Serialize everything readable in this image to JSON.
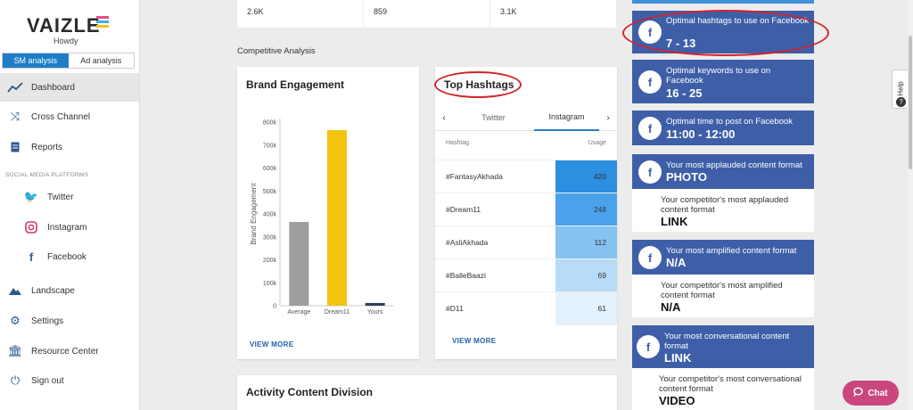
{
  "app": {
    "logo": "VAIZLE",
    "greeting": "Howdy"
  },
  "mode_toggle": {
    "sm": "SM analysis",
    "ad": "Ad analysis"
  },
  "nav": {
    "dashboard": "Dashboard",
    "cross_channel": "Cross Channel",
    "reports": "Reports",
    "section": "SOCIAL MEDIA PLATFORMS",
    "twitter": "Twitter",
    "instagram": "Instagram",
    "facebook": "Facebook",
    "landscape": "Landscape",
    "settings": "Settings",
    "resource_center": "Resource Center",
    "sign_out": "Sign out"
  },
  "stats": [
    "2.6K",
    "859",
    "3.1K"
  ],
  "competitive_title": "Competitive Analysis",
  "brand_engagement": {
    "title": "Brand Engagement",
    "view_more": "VIEW MORE"
  },
  "chart_data": {
    "type": "bar",
    "title": "Brand Engagement",
    "ylabel": "Brand Engagement",
    "categories": [
      "Average",
      "Dream11",
      "Yours"
    ],
    "values": [
      365000,
      765000,
      12000
    ],
    "colors": [
      "#9e9e9e",
      "#f2c40f",
      "#2c3e60"
    ],
    "yticks": [
      "0",
      "100k",
      "200k",
      "300k",
      "400k",
      "500k",
      "600k",
      "700k",
      "800k"
    ],
    "ylim": [
      0,
      800000
    ]
  },
  "hashtags": {
    "title": "Top Hashtags",
    "tabs": [
      "Twitter",
      "Instagram"
    ],
    "col_tag": "Hashtag",
    "col_usage": "Usage",
    "rows": [
      {
        "tag": "#FantasyAkhada",
        "usage": "420",
        "color": "#2c8fe0"
      },
      {
        "tag": "#Dream11",
        "usage": "248",
        "color": "#4aa3ea"
      },
      {
        "tag": "#AsliAkhada",
        "usage": "112",
        "color": "#86c3f1"
      },
      {
        "tag": "#BalleBaazi",
        "usage": "69",
        "color": "#b8dbf7"
      },
      {
        "tag": "#D11",
        "usage": "61",
        "color": "#e2f1fc"
      }
    ],
    "view_more": "VIEW MORE"
  },
  "activity": {
    "title": "Activity Content Division"
  },
  "insights": {
    "hashtags": {
      "label": "Optimal hashtags to use on Facebook",
      "value": "7 - 13"
    },
    "keywords": {
      "label": "Optimal keywords to use on Facebook",
      "value": "16 - 25"
    },
    "time": {
      "label": "Optimal time to post on Facebook",
      "value": "11:00 - 12:00"
    },
    "applauded": {
      "label": "Your most applauded content format",
      "value": "PHOTO",
      "comp_label": "Your competitor's most applauded content format",
      "comp_value": "LINK"
    },
    "amplified": {
      "label": "Your most amplified content format",
      "value": "N/A",
      "comp_label": "Your competitor's most amplified content format",
      "comp_value": "N/A"
    },
    "conversational": {
      "label": "Your most conversational content format",
      "value": "LINK",
      "comp_label": "Your competitor's most conversational content format",
      "comp_value": "VIDEO"
    }
  },
  "help": "Help",
  "chat": "Chat"
}
